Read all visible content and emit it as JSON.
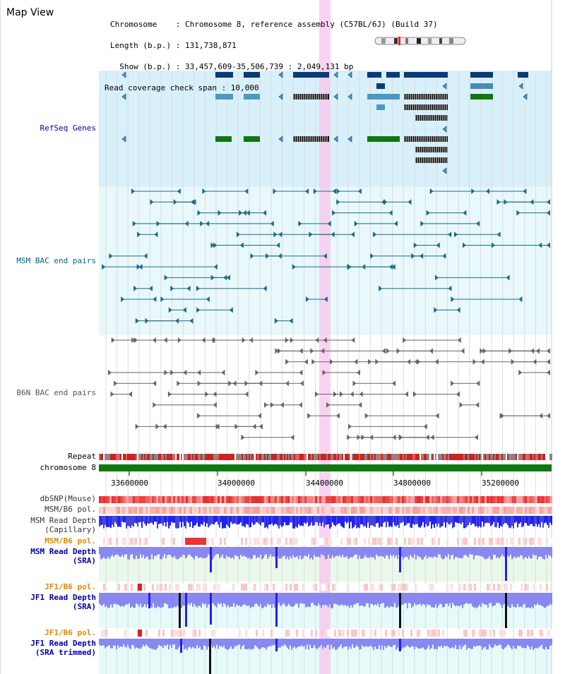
{
  "title": "Map View",
  "info": {
    "chromosome_line": "Chromosome    : Chromosome 8, reference assembly (C57BL/6J) (Build 37)",
    "length_line": "Length (b.p.) : 131,738,871",
    "show_line": "  Show (b.p.) : 33,457,609-35,506,739 : 2,049,131 bp",
    "coverage_line": "Read coverage check span : 10,000"
  },
  "tracks": {
    "refseq": "RefSeq Genes",
    "msm_bac": "MSM BAC end pairs",
    "b6n_bac": "B6N BAC end pairs",
    "repeat": "Repeat",
    "chromosome": "chromosome 8",
    "dbsnp": "dbSNP(Mouse)",
    "msm_b6_pol_1": "MSM/B6 pol.",
    "msm_depth_cap_1": "MSM Read Depth",
    "msm_depth_cap_2": "(Capillary)",
    "msm_b6_pol_2": "MSM/B6 pol.",
    "msm_depth_sra_1": "MSM Read Depth",
    "msm_depth_sra_2": "(SRA)",
    "jf1_b6_pol_1": "JF1/B6 pol.",
    "jf1_depth_sra_1": "JF1 Read Depth",
    "jf1_depth_sra_2": "(SRA)",
    "jf1_b6_pol_2": "JF1/B6 pol.",
    "jf1_depth_trim_1": "JF1 Read Depth",
    "jf1_depth_trim_2": "(SRA trimmed)"
  },
  "axis": {
    "ticks": [
      "33600000",
      "34000000",
      "34400000",
      "34800000",
      "35200000"
    ]
  },
  "colors": {
    "refseq_bg": "#d8f0fa",
    "msm_bg": "#e8f8fb",
    "chromosome_bar": "#117711",
    "highlight": "#f8c8ee",
    "depth_blue": "#2222ee",
    "depth_light": "#8888f0"
  }
}
